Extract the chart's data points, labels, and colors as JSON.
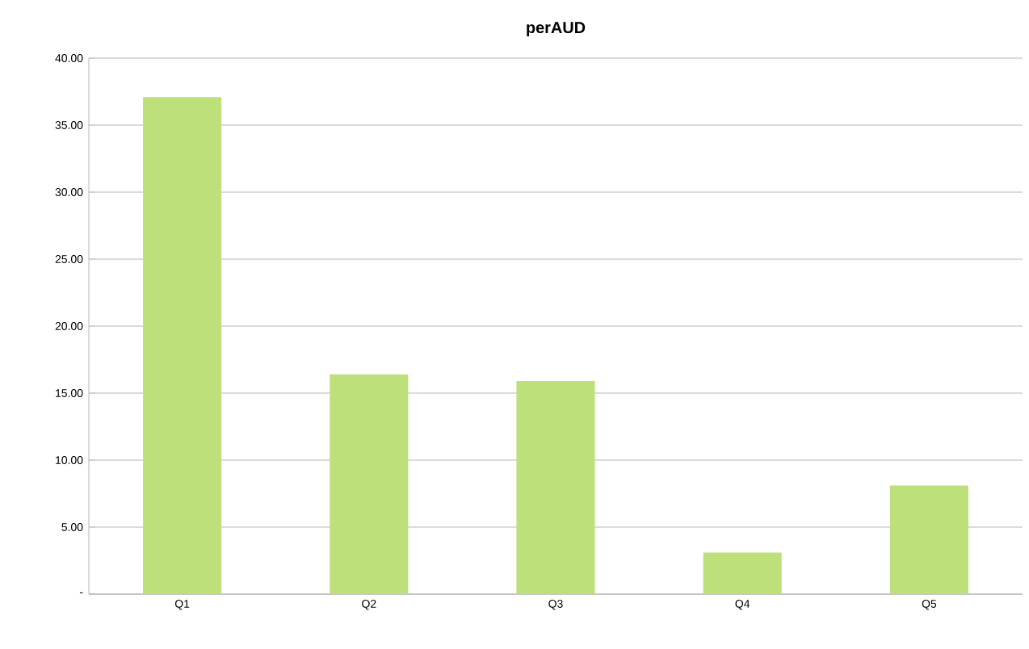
{
  "chart_data": {
    "type": "bar",
    "title": "perAUD",
    "categories": [
      "Q1",
      "Q2",
      "Q3",
      "Q4",
      "Q5"
    ],
    "values": [
      37.1,
      16.4,
      15.9,
      3.1,
      8.1
    ],
    "color": "#bde07a",
    "ylim": [
      0,
      40
    ],
    "yticks": [
      {
        "value": 0,
        "label": "-"
      },
      {
        "value": 5,
        "label": "5.00"
      },
      {
        "value": 10,
        "label": "10.00"
      },
      {
        "value": 15,
        "label": "15.00"
      },
      {
        "value": 20,
        "label": "20.00"
      },
      {
        "value": 25,
        "label": "25.00"
      },
      {
        "value": 30,
        "label": "30.00"
      },
      {
        "value": 35,
        "label": "35.00"
      },
      {
        "value": 40,
        "label": "40.00"
      }
    ],
    "grid": "y"
  }
}
